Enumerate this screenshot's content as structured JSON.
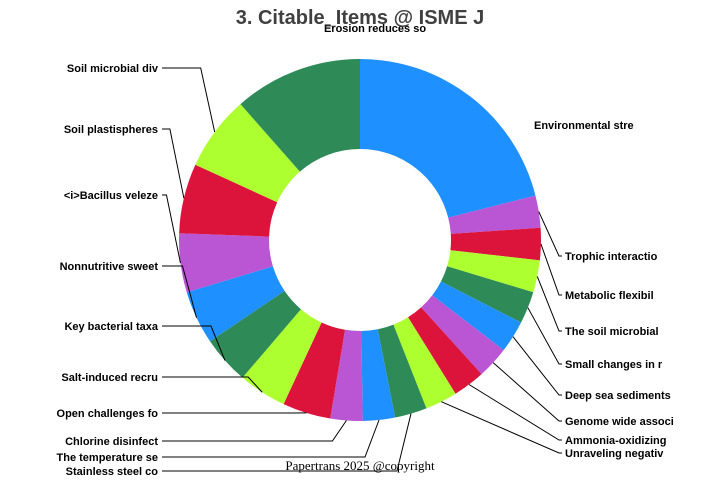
{
  "chart_data": {
    "type": "pie",
    "title": "3. Citable_Items @ ISME J",
    "footer": "Papertrans 2025 @copyright",
    "slices": [
      {
        "label": "Environmental stre",
        "value": 22.0,
        "color": "#1E90FF"
      },
      {
        "label": "Trophic interactio",
        "value": 3.0,
        "color": "#BA55D3"
      },
      {
        "label": "Metabolic flexibil",
        "value": 3.0,
        "color": "#DC143C"
      },
      {
        "label": "The soil microbial",
        "value": 3.0,
        "color": "#ADFF2F"
      },
      {
        "label": "Small changes in r",
        "value": 3.0,
        "color": "#2E8B57"
      },
      {
        "label": "Deep sea sediments",
        "value": 3.0,
        "color": "#1E90FF"
      },
      {
        "label": "Genome wide associ",
        "value": 3.0,
        "color": "#BA55D3"
      },
      {
        "label": "Ammonia-oxidizing",
        "value": 3.0,
        "color": "#DC143C"
      },
      {
        "label": "Unraveling negativ",
        "value": 3.0,
        "color": "#ADFF2F"
      },
      {
        "label": "Stainless steel co",
        "value": 3.0,
        "color": "#2E8B57"
      },
      {
        "label": "The temperature se",
        "value": 3.0,
        "color": "#1E90FF"
      },
      {
        "label": "Chlorine disinfect",
        "value": 3.0,
        "color": "#BA55D3"
      },
      {
        "label": "Open challenges fo",
        "value": 4.5,
        "color": "#DC143C"
      },
      {
        "label": "Salt-induced recru",
        "value": 4.5,
        "color": "#ADFF2F"
      },
      {
        "label": "Key bacterial taxa",
        "value": 4.5,
        "color": "#2E8B57"
      },
      {
        "label": "Nonnutritive sweet",
        "value": 5.0,
        "color": "#1E90FF"
      },
      {
        "label": "<i>Bacillus veleze",
        "value": 5.5,
        "color": "#BA55D3"
      },
      {
        "label": "Soil plastispheres",
        "value": 6.5,
        "color": "#DC143C"
      },
      {
        "label": "Soil microbial div",
        "value": 7.0,
        "color": "#ADFF2F"
      },
      {
        "label": "Erosion reduces so",
        "value": 12.0,
        "color": "#2E8B57"
      }
    ]
  }
}
